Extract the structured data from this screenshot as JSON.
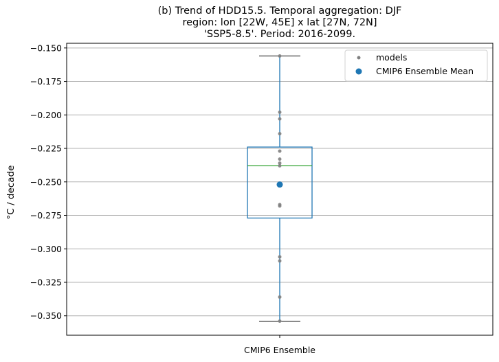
{
  "chart_data": {
    "type": "box",
    "title_lines": [
      "(b) Trend of HDD15.5. Temporal aggregation: DJF",
      "region: lon [22W, 45E] x lat [27N, 72N]",
      "'SSP5-8.5'. Period: 2016-2099."
    ],
    "ylabel": "°C / decade",
    "xlabel": "",
    "ylim": [
      -0.3645,
      -0.1465
    ],
    "yticks": [
      -0.15,
      -0.175,
      -0.2,
      -0.225,
      -0.25,
      -0.275,
      -0.3,
      -0.325,
      -0.35
    ],
    "ytick_labels": [
      "−0.150",
      "−0.175",
      "−0.200",
      "−0.225",
      "−0.250",
      "−0.275",
      "−0.300",
      "−0.325",
      "−0.350"
    ],
    "categories": [
      "CMIP6 Ensemble"
    ],
    "grid": "horizontal",
    "legend_position": "top-right",
    "box": {
      "whisker_high": -0.156,
      "q3": -0.224,
      "median": -0.238,
      "q1": -0.277,
      "whisker_low": -0.354
    },
    "series": [
      {
        "name": "models",
        "color": "#808080",
        "values": [
          -0.156,
          -0.198,
          -0.203,
          -0.214,
          -0.227,
          -0.233,
          -0.236,
          -0.238,
          -0.267,
          -0.268,
          -0.306,
          -0.309,
          -0.336,
          -0.354
        ]
      },
      {
        "name": "CMIP6 Ensemble Mean",
        "color": "#1f77b4",
        "values": [
          -0.252
        ]
      }
    ],
    "colors": {
      "box": "#1f77b4",
      "median": "#2ca02c",
      "grid": "#b0b0b0"
    }
  }
}
